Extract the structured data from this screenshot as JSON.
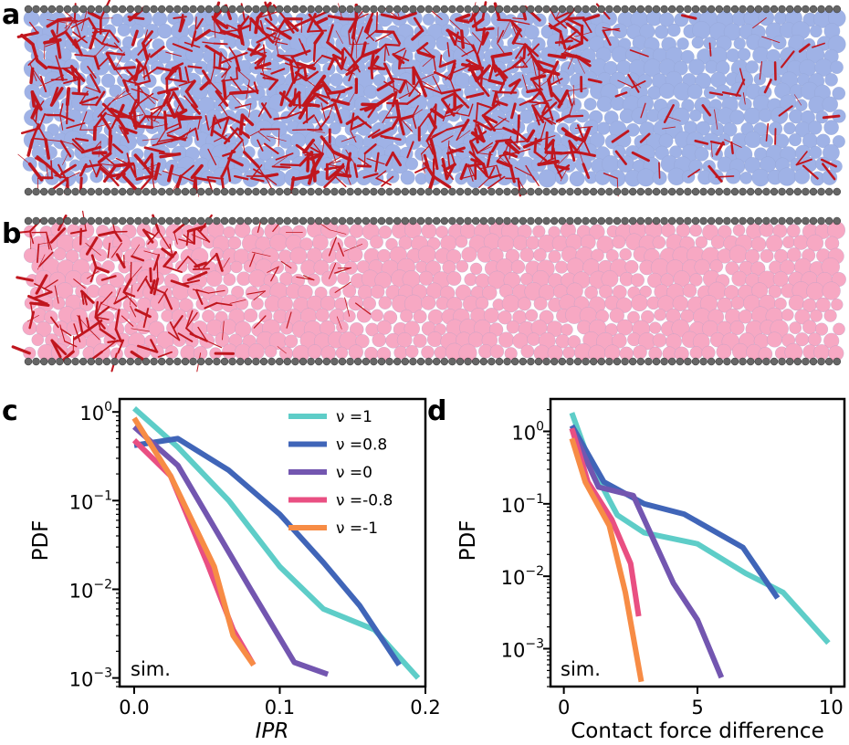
{
  "panel_labels": {
    "a": "a",
    "b": "b",
    "c": "c",
    "d": "d"
  },
  "colors": {
    "panel_a_particles": "#9fb2e6",
    "panel_b_particles": "#f7a8c3",
    "force_chains": "#c0161e",
    "wall_particles": "#666666"
  },
  "chart_data": [
    {
      "panel": "c",
      "type": "line",
      "title": "",
      "xlabel": "IPR",
      "ylabel": "PDF",
      "yscale": "log",
      "xlim": [
        -0.01,
        0.2
      ],
      "ylim": [
        0.0008,
        1.4
      ],
      "xticks": [
        0.0,
        0.1,
        0.2
      ],
      "xtick_labels": [
        "0.0",
        "0.1",
        "0.2"
      ],
      "yticks": [
        1,
        0.1,
        0.01,
        0.001
      ],
      "ytick_labels": [
        {
          "base": "10",
          "exp": "0"
        },
        {
          "base": "10",
          "exp": "−1"
        },
        {
          "base": "10",
          "exp": "−2"
        },
        {
          "base": "10",
          "exp": "−3"
        }
      ],
      "annotation": "sim.",
      "legend": "top-right",
      "series": [
        {
          "name": "ν =1",
          "color": "#5ecdc8",
          "x": [
            0.0,
            0.03,
            0.065,
            0.1,
            0.13,
            0.165,
            0.195
          ],
          "y": [
            1.1,
            0.4,
            0.1,
            0.018,
            0.006,
            0.0035,
            0.001
          ]
        },
        {
          "name": "ν =0.8",
          "color": "#4065b8",
          "x": [
            0.0,
            0.03,
            0.065,
            0.1,
            0.13,
            0.155,
            0.182
          ],
          "y": [
            0.42,
            0.5,
            0.22,
            0.07,
            0.02,
            0.0065,
            0.0014
          ]
        },
        {
          "name": "ν =0",
          "color": "#7356b0",
          "x": [
            0.0,
            0.03,
            0.055,
            0.08,
            0.11,
            0.133
          ],
          "y": [
            0.68,
            0.25,
            0.05,
            0.01,
            0.0015,
            0.0011
          ]
        },
        {
          "name": "ν =-0.8",
          "color": "#e94f82",
          "x": [
            0.0,
            0.025,
            0.05,
            0.068,
            0.082
          ],
          "y": [
            0.48,
            0.19,
            0.02,
            0.0035,
            0.0014
          ]
        },
        {
          "name": "ν =-1",
          "color": "#f78c45",
          "x": [
            0.0,
            0.025,
            0.055,
            0.068,
            0.082
          ],
          "y": [
            0.85,
            0.19,
            0.018,
            0.003,
            0.0014
          ]
        }
      ]
    },
    {
      "panel": "d",
      "type": "line",
      "title": "",
      "xlabel": "Contact force difference",
      "ylabel": "PDF",
      "yscale": "log",
      "xlim": [
        -0.5,
        10.5
      ],
      "ylim": [
        0.0003,
        2.8
      ],
      "xticks": [
        0,
        5,
        10
      ],
      "xtick_labels": [
        "0",
        "5",
        "10"
      ],
      "yticks": [
        1,
        0.1,
        0.01,
        0.001
      ],
      "ytick_labels": [
        {
          "base": "10",
          "exp": "0"
        },
        {
          "base": "10",
          "exp": "−1"
        },
        {
          "base": "10",
          "exp": "−2"
        },
        {
          "base": "10",
          "exp": "−3"
        }
      ],
      "annotation": "sim.",
      "series": [
        {
          "name": "ν =1",
          "color": "#5ecdc8",
          "x": [
            0.3,
            1.0,
            2.0,
            3.0,
            5.0,
            6.8,
            8.2,
            9.9
          ],
          "y": [
            1.8,
            0.35,
            0.07,
            0.04,
            0.028,
            0.011,
            0.006,
            0.0012
          ]
        },
        {
          "name": "ν =0.8",
          "color": "#4065b8",
          "x": [
            0.3,
            1.5,
            3.0,
            4.5,
            6.7,
            8.0
          ],
          "y": [
            1.2,
            0.2,
            0.1,
            0.072,
            0.025,
            0.005
          ]
        },
        {
          "name": "ν =0",
          "color": "#7356b0",
          "x": [
            0.3,
            1.3,
            2.6,
            4.1,
            5.0,
            5.9
          ],
          "y": [
            1.1,
            0.17,
            0.13,
            0.008,
            0.0025,
            0.0004
          ]
        },
        {
          "name": "ν =-0.8",
          "color": "#e94f82",
          "x": [
            0.3,
            0.9,
            1.8,
            2.5,
            2.8
          ],
          "y": [
            1.1,
            0.2,
            0.06,
            0.015,
            0.0028
          ]
        },
        {
          "name": "ν =-1",
          "color": "#f78c45",
          "x": [
            0.3,
            0.8,
            1.7,
            2.3,
            2.9
          ],
          "y": [
            0.8,
            0.2,
            0.05,
            0.006,
            0.00035
          ]
        }
      ]
    }
  ]
}
